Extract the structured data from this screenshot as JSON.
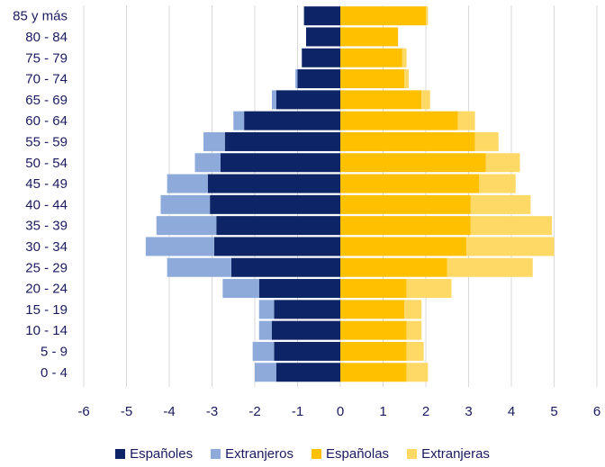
{
  "chart_data": {
    "type": "bar",
    "orientation": "horizontal",
    "layout": "population-pyramid",
    "categories": [
      "85 y más",
      "80 - 84",
      "75 - 79",
      "70 - 74",
      "65 - 69",
      "60 - 64",
      "55 - 59",
      "50 - 54",
      "45 - 49",
      "40 - 44",
      "35 - 39",
      "30 - 34",
      "25 - 29",
      "20 - 24",
      "15 - 19",
      "10 - 14",
      "5 - 9",
      "0 - 4"
    ],
    "series": [
      {
        "name": "Españoles",
        "side": "left",
        "color": "#0d2466",
        "values": [
          0.85,
          0.8,
          0.9,
          1.0,
          1.5,
          2.25,
          2.7,
          2.8,
          3.1,
          3.05,
          2.9,
          2.95,
          2.55,
          1.9,
          1.55,
          1.6,
          1.55,
          1.5
        ]
      },
      {
        "name": "Extranjeros",
        "side": "left",
        "color": "#8eaadb",
        "values": [
          0.0,
          0.0,
          0.0,
          0.05,
          0.1,
          0.25,
          0.5,
          0.6,
          0.95,
          1.15,
          1.4,
          1.6,
          1.5,
          0.85,
          0.35,
          0.3,
          0.5,
          0.5
        ]
      },
      {
        "name": "Españolas",
        "side": "right",
        "color": "#ffc000",
        "values": [
          2.0,
          1.35,
          1.45,
          1.5,
          1.9,
          2.75,
          3.15,
          3.4,
          3.25,
          3.05,
          3.05,
          2.95,
          2.5,
          1.55,
          1.5,
          1.55,
          1.55,
          1.55
        ]
      },
      {
        "name": "Extranjeras",
        "side": "right",
        "color": "#ffd966",
        "values": [
          0.05,
          0.0,
          0.1,
          0.1,
          0.2,
          0.4,
          0.55,
          0.8,
          0.85,
          1.4,
          1.9,
          2.05,
          2.0,
          1.05,
          0.4,
          0.35,
          0.4,
          0.5
        ]
      }
    ],
    "xlim": [
      -6,
      6
    ],
    "xticks": [
      "-6",
      "-5",
      "-4",
      "-3",
      "-2",
      "-1",
      "0",
      "1",
      "2",
      "3",
      "4",
      "5",
      "6"
    ],
    "grid": true,
    "legend_position": "bottom"
  }
}
